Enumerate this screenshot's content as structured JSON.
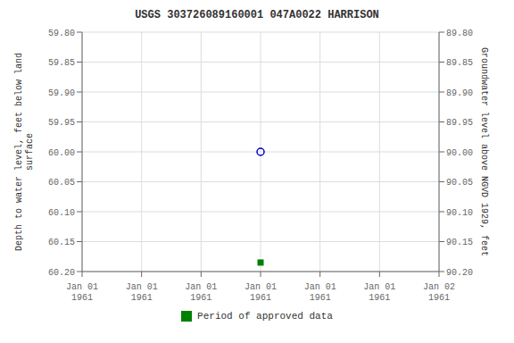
{
  "chart_data": {
    "type": "scatter",
    "title": "USGS 303726089160001 047A0022  HARRISON",
    "categories": [
      "Jan 01\n1961",
      "Jan 01\n1961",
      "Jan 01\n1961",
      "Jan 01\n1961",
      "Jan 01\n1961",
      "Jan 01\n1961",
      "Jan 02\n1961"
    ],
    "series": [
      {
        "color": "#0000cc",
        "marker": "circle",
        "values": [
          null,
          null,
          null,
          60.0,
          null,
          null,
          null
        ]
      },
      {
        "name": "Period of approved data",
        "color": "#008000",
        "marker": "square",
        "values": [
          null,
          null,
          null,
          60.185,
          null,
          null,
          null
        ]
      }
    ],
    "ylabel": "Depth to water level, feet below land\nsurface",
    "y2label": "Groundwater level above NGVD 1929, feet",
    "ylim": [
      60.2,
      59.8
    ],
    "yticks": [
      {
        "value": 59.8,
        "label": "59.80"
      },
      {
        "value": 59.85,
        "label": "59.85"
      },
      {
        "value": 59.9,
        "label": "59.90"
      },
      {
        "value": 59.95,
        "label": "59.95"
      },
      {
        "value": 60.0,
        "label": "60.00"
      },
      {
        "value": 60.05,
        "label": "60.05"
      },
      {
        "value": 60.1,
        "label": "60.10"
      },
      {
        "value": 60.15,
        "label": "60.15"
      },
      {
        "value": 60.2,
        "label": "60.20"
      }
    ],
    "y2lim": [
      90.2,
      89.8
    ],
    "y2ticks": [
      {
        "value": 90.2,
        "label": "90.20"
      },
      {
        "value": 90.15,
        "label": "90.15"
      },
      {
        "value": 90.1,
        "label": "90.10"
      },
      {
        "value": 90.05,
        "label": "90.05"
      },
      {
        "value": 90.0,
        "label": "90.00"
      },
      {
        "value": 89.95,
        "label": "89.95"
      },
      {
        "value": 89.9,
        "label": "89.90"
      },
      {
        "value": 89.85,
        "label": "89.85"
      },
      {
        "value": 89.8,
        "label": "89.80"
      }
    ],
    "grid": true,
    "legend": "bottom"
  }
}
